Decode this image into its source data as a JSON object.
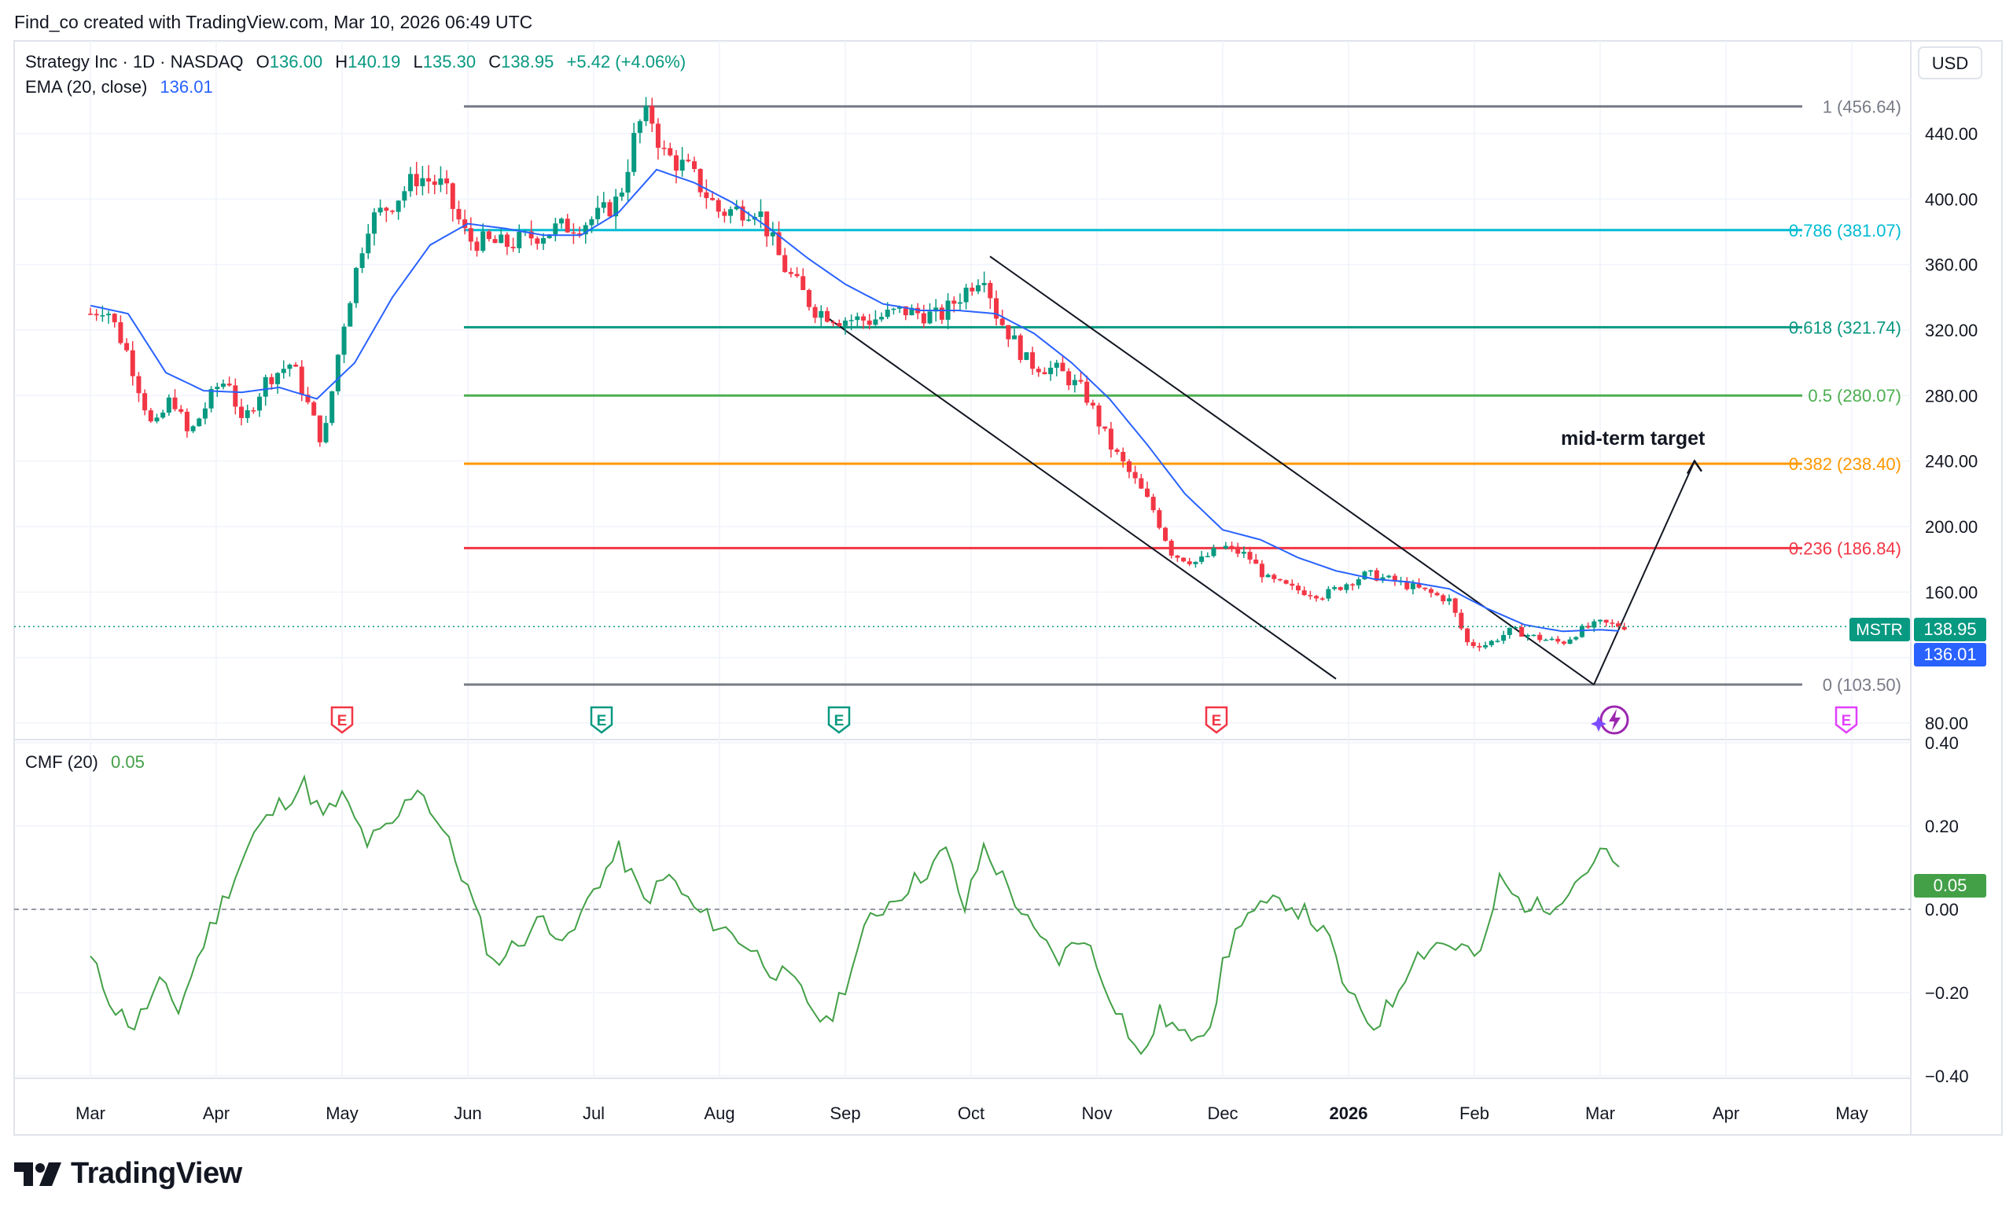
{
  "header": {
    "attribution": "Find_co created with TradingView.com, Mar 10, 2026 06:49 UTC"
  },
  "legend": {
    "symbol": "Strategy Inc · 1D · NASDAQ",
    "o_label": "O",
    "o_value": "136.00",
    "h_label": "H",
    "h_value": "140.19",
    "l_label": "L",
    "l_value": "135.30",
    "c_label": "C",
    "c_value": "138.95",
    "change": "+5.42 (+4.06%)",
    "ema_label": "EMA (20, close)",
    "ema_value": "136.01"
  },
  "currency_button": "USD",
  "price_axis": {
    "ticks": [
      "440.00",
      "400.00",
      "360.00",
      "320.00",
      "280.00",
      "240.00",
      "200.00",
      "160.00",
      "80.00"
    ],
    "tick_values": [
      440,
      400,
      360,
      320,
      280,
      240,
      200,
      160,
      80
    ]
  },
  "badges": {
    "symbol": "MSTR",
    "price": "138.95",
    "ema": "136.01",
    "cmf": "0.05"
  },
  "cmf": {
    "label": "CMF (20)",
    "value": "0.05",
    "ticks": [
      "0.40",
      "0.20",
      "0.00",
      "−0.20",
      "−0.40"
    ],
    "tick_values": [
      0.4,
      0.2,
      0.0,
      -0.2,
      -0.4
    ]
  },
  "time_axis": {
    "labels": [
      "Mar",
      "Apr",
      "May",
      "Jun",
      "Jul",
      "Aug",
      "Sep",
      "Oct",
      "Nov",
      "Dec",
      "2026",
      "Feb",
      "Mar",
      "Apr",
      "May"
    ],
    "bold": [
      false,
      false,
      false,
      false,
      false,
      false,
      false,
      false,
      false,
      false,
      true,
      false,
      false,
      false,
      false
    ]
  },
  "fib_levels": [
    {
      "label": "1 (456.64)",
      "value": 456.64,
      "color": "#787b86"
    },
    {
      "label": "0.786 (381.07)",
      "value": 381.07,
      "color": "#00bcd4"
    },
    {
      "label": "0.618 (321.74)",
      "value": 321.74,
      "color": "#089981"
    },
    {
      "label": "0.5 (280.07)",
      "value": 280.07,
      "color": "#4caf50"
    },
    {
      "label": "0.382 (238.40)",
      "value": 238.4,
      "color": "#ff9800"
    },
    {
      "label": "0.236 (186.84)",
      "value": 186.84,
      "color": "#f23645"
    },
    {
      "label": "0 (103.50)",
      "value": 103.5,
      "color": "#787b86"
    }
  ],
  "annotation": {
    "text": "mid-term target"
  },
  "earnings_markers": [
    {
      "label": "E",
      "color": "#f23645"
    },
    {
      "label": "E",
      "color": "#089981"
    },
    {
      "label": "E",
      "color": "#089981"
    },
    {
      "label": "E",
      "color": "#f23645"
    },
    {
      "label": "E",
      "color": "#e040fb"
    }
  ],
  "footer": {
    "brand": "TradingView"
  },
  "colors": {
    "up": "#089981",
    "down": "#f23645",
    "ema": "#2962ff",
    "cmf": "#43a047",
    "grid": "#f0f3fa"
  },
  "chart_data": {
    "type": "candlestick",
    "title": "Strategy Inc · 1D · NASDAQ",
    "ylim": [
      80,
      460
    ],
    "cmf_ylim": [
      -0.4,
      0.4
    ],
    "months": [
      "Mar",
      "Apr",
      "May",
      "Jun",
      "Jul",
      "Aug",
      "Sep",
      "Oct",
      "Nov",
      "Dec",
      "2026",
      "Feb",
      "Mar",
      "Apr",
      "May"
    ],
    "price_path": [
      [
        0,
        330
      ],
      [
        0.12,
        335
      ],
      [
        0.3,
        305
      ],
      [
        0.5,
        258
      ],
      [
        0.65,
        280
      ],
      [
        0.78,
        255
      ],
      [
        1,
        285
      ],
      [
        1.1,
        290
      ],
      [
        1.2,
        262
      ],
      [
        1.4,
        290
      ],
      [
        1.6,
        300
      ],
      [
        1.85,
        250
      ],
      [
        2,
        320
      ],
      [
        2.2,
        385
      ],
      [
        2.4,
        398
      ],
      [
        2.6,
        414
      ],
      [
        2.8,
        408
      ],
      [
        3.0,
        375
      ],
      [
        3.3,
        372
      ],
      [
        3.5,
        377
      ],
      [
        3.7,
        382
      ],
      [
        3.9,
        385
      ],
      [
        4.05,
        390
      ],
      [
        4.2,
        400
      ],
      [
        4.35,
        445
      ],
      [
        4.45,
        452
      ],
      [
        4.55,
        428
      ],
      [
        4.75,
        418
      ],
      [
        5.0,
        392
      ],
      [
        5.3,
        395
      ],
      [
        5.5,
        360
      ],
      [
        5.75,
        333
      ],
      [
        5.95,
        327
      ],
      [
        6.2,
        326
      ],
      [
        6.45,
        332
      ],
      [
        6.75,
        328
      ],
      [
        7.0,
        348
      ],
      [
        7.1,
        356
      ],
      [
        7.2,
        330
      ],
      [
        7.45,
        300
      ],
      [
        7.7,
        295
      ],
      [
        7.9,
        282
      ],
      [
        8.1,
        250
      ],
      [
        8.3,
        228
      ],
      [
        8.45,
        210
      ],
      [
        8.6,
        183
      ],
      [
        8.8,
        178
      ],
      [
        9.0,
        188
      ],
      [
        9.2,
        182
      ],
      [
        9.35,
        168
      ],
      [
        9.55,
        162
      ],
      [
        9.8,
        158
      ],
      [
        10.0,
        166
      ],
      [
        10.15,
        171
      ],
      [
        10.3,
        168
      ],
      [
        10.55,
        162
      ],
      [
        10.8,
        155
      ],
      [
        10.95,
        128
      ],
      [
        11.1,
        128
      ],
      [
        11.3,
        137
      ],
      [
        11.5,
        132
      ],
      [
        11.7,
        129
      ],
      [
        11.85,
        137
      ],
      [
        12.0,
        141
      ],
      [
        12.2,
        138.95
      ]
    ],
    "ema_path": [
      [
        0,
        335
      ],
      [
        0.3,
        330
      ],
      [
        0.6,
        294
      ],
      [
        0.9,
        283
      ],
      [
        1.2,
        282
      ],
      [
        1.5,
        285
      ],
      [
        1.8,
        278
      ],
      [
        2.1,
        300
      ],
      [
        2.4,
        340
      ],
      [
        2.7,
        372
      ],
      [
        3.0,
        385
      ],
      [
        3.3,
        382
      ],
      [
        3.6,
        378
      ],
      [
        3.9,
        378
      ],
      [
        4.2,
        392
      ],
      [
        4.5,
        418
      ],
      [
        4.8,
        410
      ],
      [
        5.1,
        398
      ],
      [
        5.4,
        382
      ],
      [
        5.7,
        364
      ],
      [
        6.0,
        348
      ],
      [
        6.3,
        336
      ],
      [
        6.6,
        332
      ],
      [
        6.9,
        332
      ],
      [
        7.2,
        330
      ],
      [
        7.5,
        318
      ],
      [
        7.8,
        300
      ],
      [
        8.1,
        278
      ],
      [
        8.4,
        250
      ],
      [
        8.7,
        220
      ],
      [
        9.0,
        198
      ],
      [
        9.3,
        192
      ],
      [
        9.6,
        181
      ],
      [
        9.9,
        173
      ],
      [
        10.2,
        168
      ],
      [
        10.5,
        166
      ],
      [
        10.8,
        162
      ],
      [
        11.1,
        150
      ],
      [
        11.4,
        140
      ],
      [
        11.7,
        136
      ],
      [
        12.0,
        137
      ],
      [
        12.2,
        136.01
      ]
    ],
    "cmf_path": [
      [
        0,
        -0.12
      ],
      [
        0.2,
        -0.24
      ],
      [
        0.35,
        -0.28
      ],
      [
        0.55,
        -0.18
      ],
      [
        0.7,
        -0.24
      ],
      [
        0.9,
        -0.08
      ],
      [
        1.1,
        0.05
      ],
      [
        1.3,
        0.18
      ],
      [
        1.5,
        0.25
      ],
      [
        1.7,
        0.3
      ],
      [
        1.85,
        0.22
      ],
      [
        2.0,
        0.27
      ],
      [
        2.2,
        0.16
      ],
      [
        2.4,
        0.2
      ],
      [
        2.6,
        0.3
      ],
      [
        2.8,
        0.19
      ],
      [
        3.0,
        0.05
      ],
      [
        3.2,
        -0.13
      ],
      [
        3.4,
        -0.08
      ],
      [
        3.6,
        -0.02
      ],
      [
        3.8,
        -0.08
      ],
      [
        4.0,
        0.05
      ],
      [
        4.2,
        0.14
      ],
      [
        4.4,
        0.02
      ],
      [
        4.6,
        0.08
      ],
      [
        4.8,
        0.0
      ],
      [
        5.0,
        -0.04
      ],
      [
        5.2,
        -0.08
      ],
      [
        5.4,
        -0.14
      ],
      [
        5.6,
        -0.18
      ],
      [
        5.85,
        -0.28
      ],
      [
        6.0,
        -0.18
      ],
      [
        6.2,
        -0.02
      ],
      [
        6.4,
        0.03
      ],
      [
        6.6,
        0.08
      ],
      [
        6.8,
        0.14
      ],
      [
        6.95,
        0.0
      ],
      [
        7.1,
        0.15
      ],
      [
        7.3,
        0.05
      ],
      [
        7.5,
        -0.06
      ],
      [
        7.7,
        -0.12
      ],
      [
        7.9,
        -0.06
      ],
      [
        8.0,
        -0.14
      ],
      [
        8.2,
        -0.26
      ],
      [
        8.35,
        -0.36
      ],
      [
        8.5,
        -0.25
      ],
      [
        8.7,
        -0.31
      ],
      [
        8.9,
        -0.27
      ],
      [
        9.0,
        -0.14
      ],
      [
        9.15,
        -0.02
      ],
      [
        9.3,
        0.0
      ],
      [
        9.5,
        0.02
      ],
      [
        9.7,
        -0.02
      ],
      [
        9.85,
        -0.08
      ],
      [
        10.0,
        -0.21
      ],
      [
        10.2,
        -0.28
      ],
      [
        10.35,
        -0.22
      ],
      [
        10.5,
        -0.12
      ],
      [
        10.7,
        -0.08
      ],
      [
        10.9,
        -0.09
      ],
      [
        11.05,
        -0.12
      ],
      [
        11.2,
        0.07
      ],
      [
        11.35,
        0.02
      ],
      [
        11.55,
        0.0
      ],
      [
        11.75,
        0.05
      ],
      [
        11.9,
        0.1
      ],
      [
        12.05,
        0.14
      ],
      [
        12.2,
        0.05
      ]
    ],
    "channel_upper": [
      [
        7.15,
        365
      ],
      [
        11.95,
        103.5
      ]
    ],
    "channel_lower": [
      [
        5.85,
        328
      ],
      [
        9.9,
        107
      ]
    ],
    "projection": [
      [
        11.95,
        103.5
      ],
      [
        12.75,
        240
      ]
    ]
  }
}
